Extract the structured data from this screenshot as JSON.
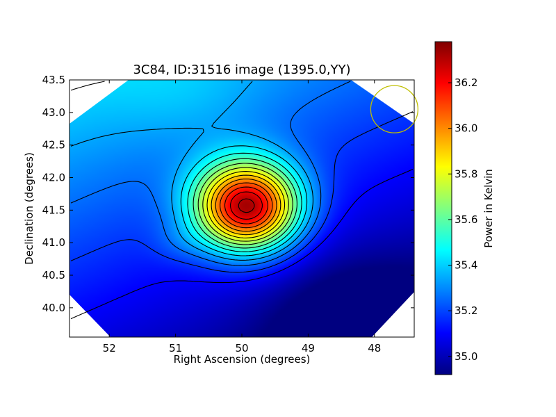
{
  "chart_data": {
    "type": "heatmap",
    "title": "3C84, ID:31516 image (1395.0,YY)",
    "xlabel": "Right Ascension (degrees)",
    "ylabel": "Declination (degrees)",
    "xlim": [
      52.6,
      47.4
    ],
    "ylim": [
      39.55,
      43.5
    ],
    "x_ticks": [
      52,
      51,
      50,
      49,
      48
    ],
    "x_tick_labels": [
      "52",
      "51",
      "50",
      "49",
      "48"
    ],
    "y_ticks": [
      40.0,
      40.5,
      41.0,
      41.5,
      42.0,
      42.5,
      43.0,
      43.5
    ],
    "y_tick_labels": [
      "40.0",
      "40.5",
      "41.0",
      "41.5",
      "42.0",
      "42.5",
      "43.0",
      "43.5"
    ],
    "colormap": "jet",
    "colorbar": {
      "label": "Power in Kelvin",
      "range": [
        34.92,
        36.38
      ],
      "ticks": [
        35.0,
        35.2,
        35.4,
        35.6,
        35.8,
        36.0,
        36.2
      ],
      "tick_labels": [
        "35.0",
        "35.2",
        "35.4",
        "35.6",
        "35.8",
        "36.0",
        "36.2"
      ]
    },
    "peak": {
      "ra": 49.92,
      "dec": 41.55,
      "value": 36.38
    },
    "secondary_bump": {
      "ra": 50.95,
      "dec": 41.0
    },
    "minimum_region": {
      "ra": 48.3,
      "dec": 39.8,
      "value": 34.92
    },
    "contour_color": "#000000",
    "grid": false,
    "beam_circle": {
      "ra": 47.7,
      "dec": 43.05,
      "color": "#bfbf00"
    }
  }
}
